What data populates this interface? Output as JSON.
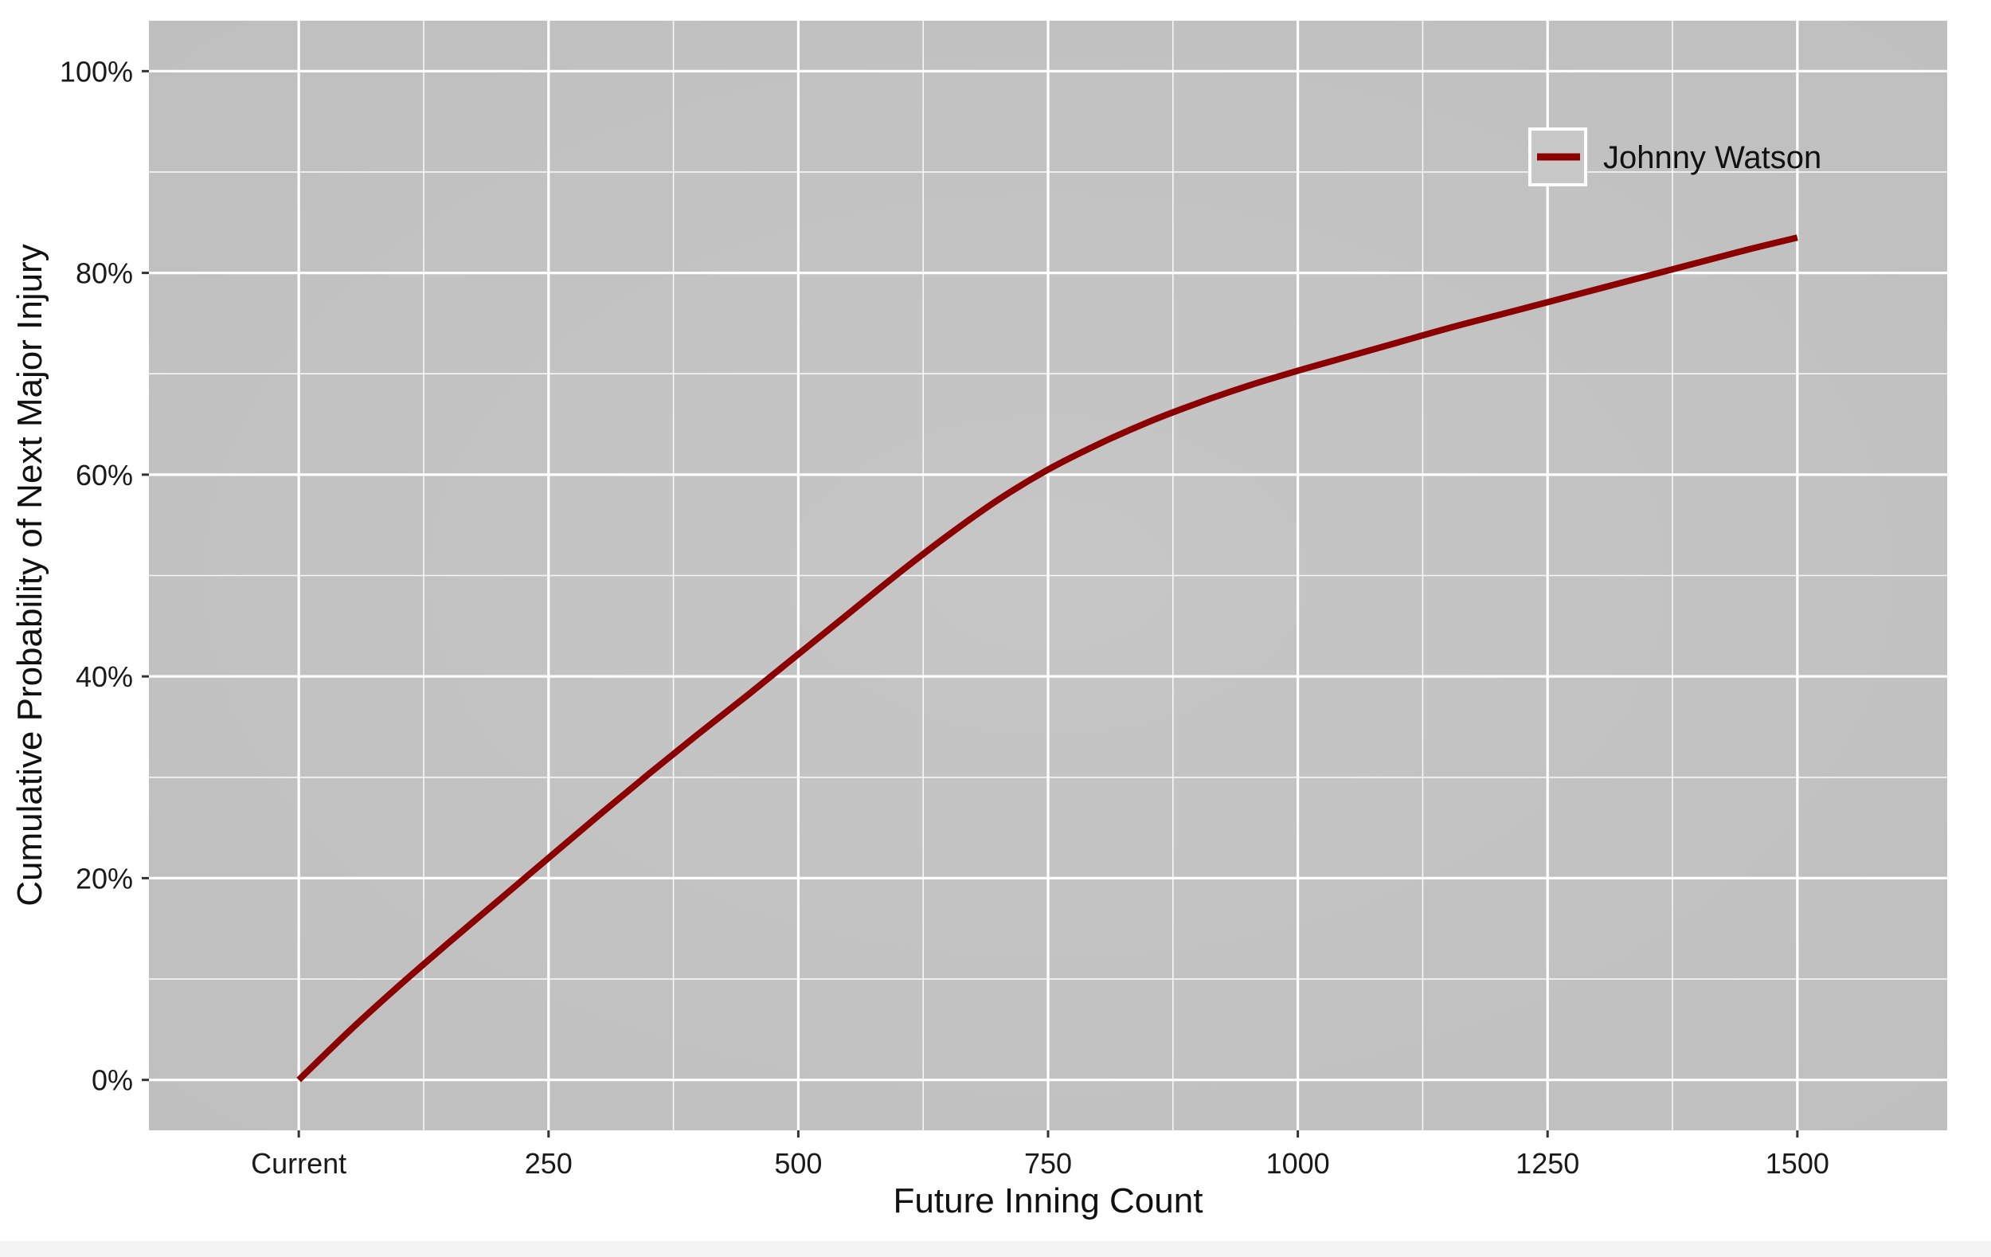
{
  "chart_data": {
    "type": "line",
    "xlabel": "Future Inning Count",
    "ylabel": "Cumulative Probability of Next Major Injury",
    "xlim": [
      -150,
      1650
    ],
    "ylim": [
      -0.05,
      1.05
    ],
    "x_ticks": [
      {
        "value": 0,
        "label": "Current"
      },
      {
        "value": 250,
        "label": "250"
      },
      {
        "value": 500,
        "label": "500"
      },
      {
        "value": 750,
        "label": "750"
      },
      {
        "value": 1000,
        "label": "1000"
      },
      {
        "value": 1250,
        "label": "1250"
      },
      {
        "value": 1500,
        "label": "1500"
      }
    ],
    "y_ticks": [
      {
        "value": 0,
        "label": "0%"
      },
      {
        "value": 0.2,
        "label": "20%"
      },
      {
        "value": 0.4,
        "label": "40%"
      },
      {
        "value": 0.6,
        "label": "60%"
      },
      {
        "value": 0.8,
        "label": "80%"
      },
      {
        "value": 1.0,
        "label": "100%"
      }
    ],
    "grid": true,
    "background_color": "#c2c2c2",
    "grid_color": "#ffffff",
    "legend_position": "top-right",
    "series": [
      {
        "name": "Johnny Watson",
        "color": "#8b0000",
        "x": [
          0,
          50,
          100,
          150,
          200,
          250,
          300,
          350,
          400,
          450,
          500,
          550,
          600,
          650,
          700,
          750,
          800,
          850,
          900,
          950,
          1000,
          1050,
          1100,
          1150,
          1200,
          1250,
          1300,
          1350,
          1400,
          1450,
          1500
        ],
        "y": [
          0.0,
          0.048,
          0.093,
          0.136,
          0.178,
          0.22,
          0.262,
          0.303,
          0.343,
          0.382,
          0.422,
          0.462,
          0.502,
          0.54,
          0.575,
          0.605,
          0.63,
          0.652,
          0.671,
          0.688,
          0.703,
          0.717,
          0.731,
          0.745,
          0.758,
          0.771,
          0.784,
          0.797,
          0.81,
          0.823,
          0.835
        ]
      }
    ]
  }
}
